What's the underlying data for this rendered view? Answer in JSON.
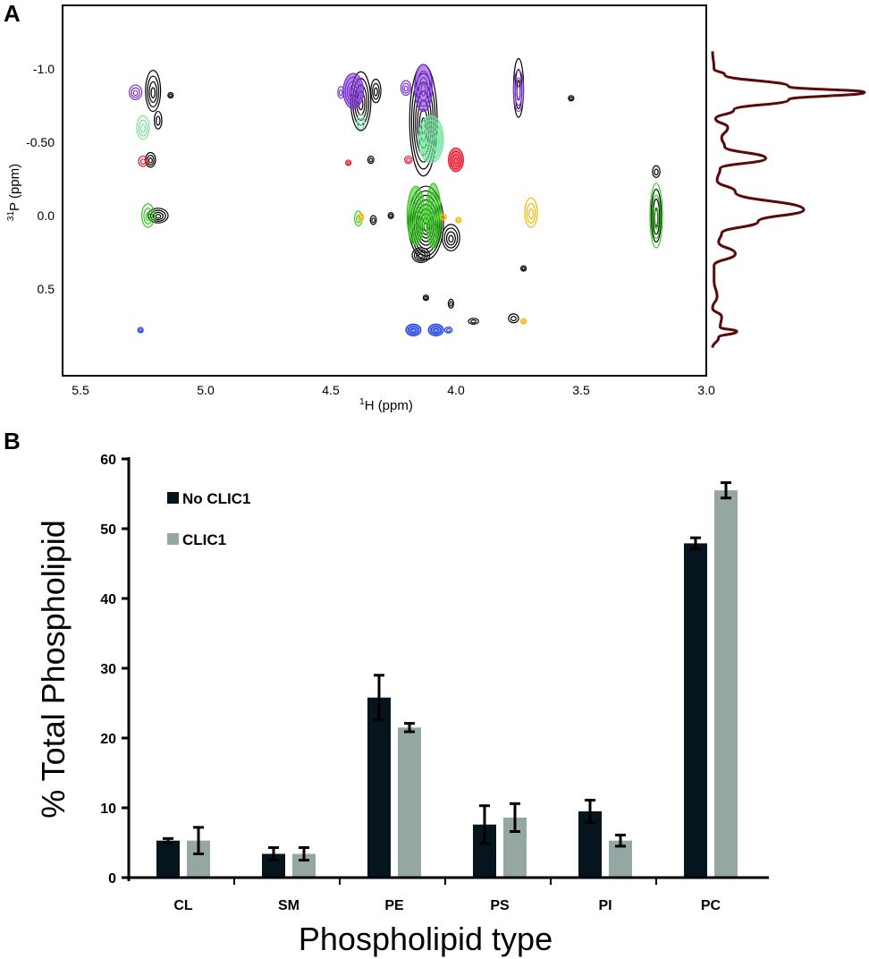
{
  "figure": {
    "panel_a_label": "A",
    "panel_b_label": "B"
  },
  "chart_data": [
    {
      "type": "scatter",
      "subtype": "2D NMR contour (1H-31P) with 1D 31P projection",
      "title": "",
      "xlabel_prefix": "1",
      "xlabel": "H (ppm)",
      "ylabel_prefix": "31",
      "ylabel": "P (ppm)",
      "xlim": [
        5.55,
        3.0
      ],
      "ylim": [
        -1.3,
        0.85
      ],
      "x_ticks": [
        {
          "value": 5.5,
          "label": "5.5"
        },
        {
          "value": 5.0,
          "label": "5.0"
        },
        {
          "value": 4.5,
          "label": "4.5"
        },
        {
          "value": 4.0,
          "label": "4.0"
        },
        {
          "value": 3.5,
          "label": "3.5"
        },
        {
          "value": 3.0,
          "label": "3.0"
        }
      ],
      "y_ticks": [
        {
          "value": -1.0,
          "label": "-1.0"
        },
        {
          "value": -0.5,
          "label": "-0.50"
        },
        {
          "value": 0.0,
          "label": "0.0"
        },
        {
          "value": 0.5,
          "label": "0.5"
        }
      ],
      "series_colors": {
        "reference": "#000000",
        "purple": "#7b2fd1",
        "light_green": "#6fe39a",
        "red": "#e8162a",
        "green": "#34c81e",
        "orange": "#f2b600",
        "blue": "#1f3fe0"
      },
      "peaks": [
        {
          "series": "reference",
          "x": 5.21,
          "y": -0.85,
          "sx": 0.03,
          "sy": 0.14
        },
        {
          "series": "reference",
          "x": 5.19,
          "y": -0.65,
          "sx": 0.015,
          "sy": 0.06
        },
        {
          "series": "reference",
          "x": 5.22,
          "y": -0.38,
          "sx": 0.02,
          "sy": 0.05
        },
        {
          "series": "reference",
          "x": 5.19,
          "y": 0.0,
          "sx": 0.04,
          "sy": 0.05
        },
        {
          "series": "reference",
          "x": 5.14,
          "y": -0.82,
          "sx": 0.008,
          "sy": 0.015
        },
        {
          "series": "purple",
          "x": 5.28,
          "y": -0.84,
          "sx": 0.025,
          "sy": 0.05
        },
        {
          "series": "light_green",
          "x": 5.25,
          "y": -0.6,
          "sx": 0.025,
          "sy": 0.08
        },
        {
          "series": "red",
          "x": 5.25,
          "y": -0.37,
          "sx": 0.018,
          "sy": 0.035
        },
        {
          "series": "green",
          "x": 5.23,
          "y": -0.0,
          "sx": 0.025,
          "sy": 0.08
        },
        {
          "series": "blue",
          "x": 5.26,
          "y": 0.78,
          "sx": 0.01,
          "sy": 0.012
        },
        {
          "series": "reference",
          "x": 4.38,
          "y": -0.78,
          "sx": 0.04,
          "sy": 0.2
        },
        {
          "series": "reference",
          "x": 4.32,
          "y": -0.85,
          "sx": 0.02,
          "sy": 0.08
        },
        {
          "series": "reference",
          "x": 4.34,
          "y": -0.38,
          "sx": 0.012,
          "sy": 0.025
        },
        {
          "series": "reference",
          "x": 4.33,
          "y": 0.03,
          "sx": 0.012,
          "sy": 0.03
        },
        {
          "series": "purple",
          "x": 4.41,
          "y": -0.85,
          "sx": 0.04,
          "sy": 0.12
        },
        {
          "series": "purple",
          "x": 4.46,
          "y": -0.84,
          "sx": 0.012,
          "sy": 0.04
        },
        {
          "series": "light_green",
          "x": 4.38,
          "y": -0.64,
          "sx": 0.015,
          "sy": 0.05
        },
        {
          "series": "red",
          "x": 4.43,
          "y": -0.36,
          "sx": 0.008,
          "sy": 0.015
        },
        {
          "series": "green",
          "x": 4.39,
          "y": 0.02,
          "sx": 0.015,
          "sy": 0.05
        },
        {
          "series": "orange",
          "x": 4.38,
          "y": 0.01,
          "sx": 0.01,
          "sy": 0.025
        },
        {
          "series": "reference",
          "x": 4.13,
          "y": -0.65,
          "sx": 0.055,
          "sy": 0.38
        },
        {
          "series": "reference",
          "x": 4.12,
          "y": 0.05,
          "sx": 0.07,
          "sy": 0.25
        },
        {
          "series": "reference",
          "x": 4.02,
          "y": 0.15,
          "sx": 0.035,
          "sy": 0.09
        },
        {
          "series": "reference",
          "x": 4.14,
          "y": 0.27,
          "sx": 0.035,
          "sy": 0.05
        },
        {
          "series": "reference",
          "x": 4.26,
          "y": 0.0,
          "sx": 0.008,
          "sy": 0.02
        },
        {
          "series": "purple",
          "x": 4.13,
          "y": -0.87,
          "sx": 0.035,
          "sy": 0.16
        },
        {
          "series": "purple",
          "x": 4.2,
          "y": -0.87,
          "sx": 0.02,
          "sy": 0.05
        },
        {
          "series": "light_green",
          "x": 4.1,
          "y": -0.52,
          "sx": 0.05,
          "sy": 0.16
        },
        {
          "series": "red",
          "x": 4.19,
          "y": -0.38,
          "sx": 0.015,
          "sy": 0.025
        },
        {
          "series": "red",
          "x": 4.0,
          "y": -0.38,
          "sx": 0.03,
          "sy": 0.08
        },
        {
          "series": "green",
          "x": 4.16,
          "y": 0.0,
          "sx": 0.035,
          "sy": 0.2
        },
        {
          "series": "green",
          "x": 4.09,
          "y": 0.0,
          "sx": 0.03,
          "sy": 0.22
        },
        {
          "series": "orange",
          "x": 4.05,
          "y": 0.01,
          "sx": 0.012,
          "sy": 0.02
        },
        {
          "series": "orange",
          "x": 3.99,
          "y": 0.03,
          "sx": 0.006,
          "sy": 0.015
        },
        {
          "series": "reference",
          "x": 4.12,
          "y": 0.56,
          "sx": 0.01,
          "sy": 0.015
        },
        {
          "series": "reference",
          "x": 4.02,
          "y": 0.6,
          "sx": 0.01,
          "sy": 0.03
        },
        {
          "series": "blue",
          "x": 4.17,
          "y": 0.78,
          "sx": 0.03,
          "sy": 0.04
        },
        {
          "series": "blue",
          "x": 4.08,
          "y": 0.78,
          "sx": 0.03,
          "sy": 0.04
        },
        {
          "series": "blue",
          "x": 4.03,
          "y": 0.78,
          "sx": 0.015,
          "sy": 0.02
        },
        {
          "series": "reference",
          "x": 3.93,
          "y": 0.72,
          "sx": 0.02,
          "sy": 0.02
        },
        {
          "series": "reference",
          "x": 3.77,
          "y": 0.7,
          "sx": 0.02,
          "sy": 0.03
        },
        {
          "series": "reference",
          "x": 3.75,
          "y": -0.87,
          "sx": 0.02,
          "sy": 0.2
        },
        {
          "series": "purple",
          "x": 3.75,
          "y": -0.85,
          "sx": 0.02,
          "sy": 0.14
        },
        {
          "series": "reference",
          "x": 3.54,
          "y": -0.8,
          "sx": 0.006,
          "sy": 0.008
        },
        {
          "series": "reference",
          "x": 3.73,
          "y": 0.36,
          "sx": 0.006,
          "sy": 0.015
        },
        {
          "series": "orange",
          "x": 3.7,
          "y": -0.02,
          "sx": 0.025,
          "sy": 0.1
        },
        {
          "series": "orange",
          "x": 3.73,
          "y": 0.72,
          "sx": 0.005,
          "sy": 0.008
        },
        {
          "series": "reference",
          "x": 3.2,
          "y": -0.3,
          "sx": 0.015,
          "sy": 0.04
        },
        {
          "series": "reference",
          "x": 3.2,
          "y": 0.0,
          "sx": 0.02,
          "sy": 0.18
        },
        {
          "series": "green",
          "x": 3.2,
          "y": 0.0,
          "sx": 0.025,
          "sy": 0.22
        }
      ],
      "projection": {
        "color": "#5a0a0a",
        "axis": "31P",
        "points": [
          [
            -1.12,
            0.0
          ],
          [
            -1.0,
            0.01
          ],
          [
            -0.96,
            0.08
          ],
          [
            -0.88,
            0.5
          ],
          [
            -0.84,
            1.0
          ],
          [
            -0.79,
            0.5
          ],
          [
            -0.72,
            0.14
          ],
          [
            -0.66,
            0.02
          ],
          [
            -0.6,
            0.1
          ],
          [
            -0.53,
            0.06
          ],
          [
            -0.47,
            0.08
          ],
          [
            -0.39,
            0.35
          ],
          [
            -0.32,
            0.05
          ],
          [
            -0.24,
            0.03
          ],
          [
            -0.16,
            0.15
          ],
          [
            -0.04,
            0.6
          ],
          [
            0.04,
            0.3
          ],
          [
            0.12,
            0.06
          ],
          [
            0.18,
            0.04
          ],
          [
            0.26,
            0.15
          ],
          [
            0.34,
            0.01
          ],
          [
            0.45,
            0.01
          ],
          [
            0.55,
            0.03
          ],
          [
            0.63,
            0.0
          ],
          [
            0.69,
            0.06
          ],
          [
            0.76,
            0.05
          ],
          [
            0.79,
            0.16
          ],
          [
            0.83,
            0.04
          ],
          [
            0.9,
            0.0
          ]
        ]
      }
    },
    {
      "type": "bar",
      "title": "",
      "xlabel": "Phospholipid type",
      "ylabel": "% Total Phospholipid",
      "ylim": [
        0,
        60
      ],
      "y_ticks": [
        0,
        10,
        20,
        30,
        40,
        50,
        60
      ],
      "grid": false,
      "legend_position": "top-left",
      "categories": [
        "CL",
        "SM",
        "PE",
        "PS",
        "PI",
        "PC"
      ],
      "series": [
        {
          "name": "No CLIC1",
          "color": "#06141d",
          "values": [
            5.3,
            3.4,
            25.8,
            7.6,
            9.5,
            47.9
          ],
          "errors": [
            0.3,
            0.9,
            3.2,
            2.7,
            1.6,
            0.8
          ]
        },
        {
          "name": "CLIC1",
          "color": "#95a7a3",
          "values": [
            5.3,
            3.4,
            21.5,
            8.6,
            5.3,
            55.5
          ],
          "errors": [
            1.9,
            0.9,
            0.6,
            2.0,
            0.8,
            1.1
          ]
        }
      ]
    }
  ]
}
